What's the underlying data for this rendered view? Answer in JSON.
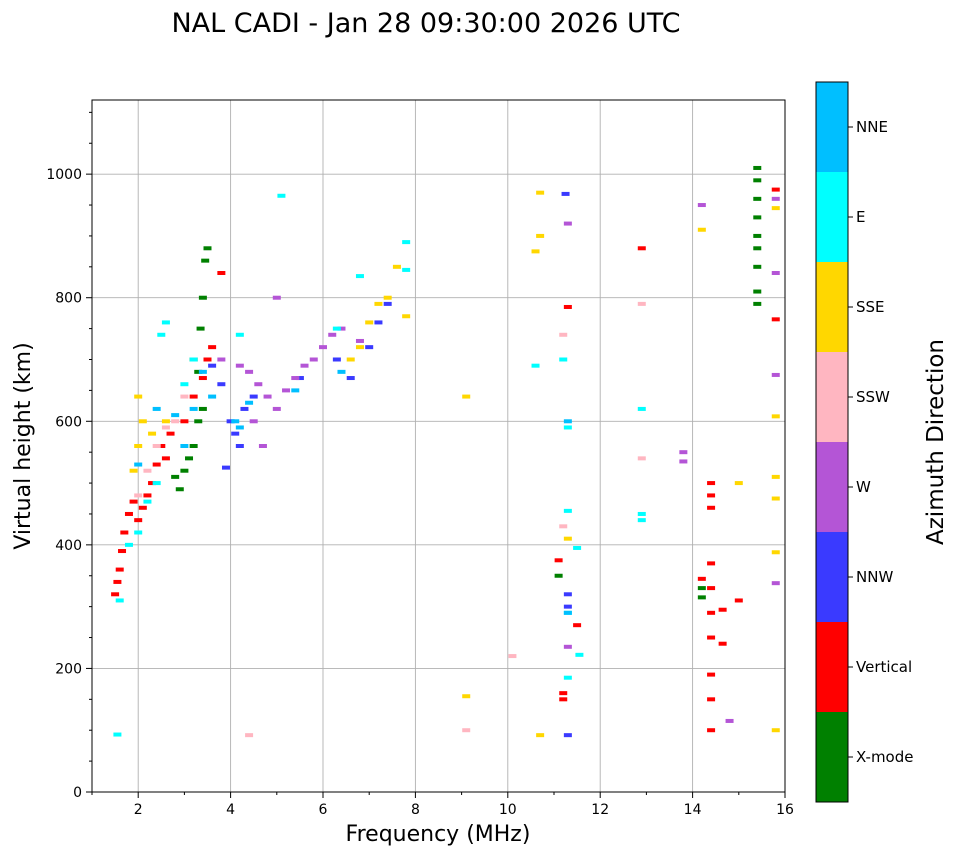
{
  "chart_data": {
    "type": "scatter",
    "title": "NAL CADI - Jan 28 09:30:00 2026 UTC",
    "xlabel": "Frequency (MHz)",
    "ylabel": "Virtual height (km)",
    "xlim": [
      1,
      16
    ],
    "ylim": [
      0,
      1120
    ],
    "xticks": [
      2,
      4,
      6,
      8,
      10,
      12,
      14,
      16
    ],
    "yticks": [
      0,
      200,
      400,
      600,
      800,
      1000
    ],
    "grid": true,
    "colorbar": {
      "label": "Azimuth Direction",
      "categories": [
        {
          "name": "X-mode",
          "color": "#008000"
        },
        {
          "name": "Vertical",
          "color": "#ff0000"
        },
        {
          "name": "NNW",
          "color": "#3a3aff"
        },
        {
          "name": "W",
          "color": "#b455d6"
        },
        {
          "name": "SSW",
          "color": "#ffb6c1"
        },
        {
          "name": "SSE",
          "color": "#ffd700"
        },
        {
          "name": "E",
          "color": "#00ffff"
        },
        {
          "name": "NNE",
          "color": "#00bfff"
        }
      ]
    },
    "series": [
      {
        "name": "Vertical",
        "points": [
          [
            1.5,
            320
          ],
          [
            1.55,
            340
          ],
          [
            1.6,
            360
          ],
          [
            1.65,
            390
          ],
          [
            1.7,
            420
          ],
          [
            1.8,
            450
          ],
          [
            1.9,
            470
          ],
          [
            2.0,
            440
          ],
          [
            2.1,
            460
          ],
          [
            2.2,
            480
          ],
          [
            2.3,
            500
          ],
          [
            2.4,
            530
          ],
          [
            2.5,
            560
          ],
          [
            2.6,
            540
          ],
          [
            2.7,
            580
          ],
          [
            3.0,
            600
          ],
          [
            3.2,
            640
          ],
          [
            3.4,
            670
          ],
          [
            3.5,
            700
          ],
          [
            3.6,
            720
          ],
          [
            3.8,
            840
          ],
          [
            11.1,
            375
          ],
          [
            11.2,
            160
          ],
          [
            11.2,
            150
          ],
          [
            11.5,
            270
          ],
          [
            12.9,
            880
          ],
          [
            11.3,
            785
          ],
          [
            14.4,
            500
          ],
          [
            14.4,
            480
          ],
          [
            14.4,
            460
          ],
          [
            14.4,
            370
          ],
          [
            14.4,
            330
          ],
          [
            14.4,
            290
          ],
          [
            14.4,
            250
          ],
          [
            14.4,
            190
          ],
          [
            14.4,
            150
          ],
          [
            14.4,
            100
          ],
          [
            14.65,
            295
          ],
          [
            14.65,
            240
          ],
          [
            14.2,
            345
          ],
          [
            15.0,
            310
          ],
          [
            15.8,
            975
          ],
          [
            15.8,
            765
          ]
        ]
      },
      {
        "name": "X-mode",
        "points": [
          [
            2.8,
            510
          ],
          [
            2.9,
            490
          ],
          [
            3.0,
            520
          ],
          [
            3.1,
            540
          ],
          [
            3.2,
            560
          ],
          [
            3.3,
            600
          ],
          [
            3.4,
            620
          ],
          [
            3.35,
            750
          ],
          [
            3.4,
            800
          ],
          [
            3.45,
            860
          ],
          [
            3.5,
            880
          ],
          [
            3.2,
            700
          ],
          [
            3.3,
            680
          ],
          [
            11.1,
            350
          ],
          [
            14.2,
            315
          ],
          [
            14.2,
            330
          ],
          [
            15.4,
            1010
          ],
          [
            15.4,
            990
          ],
          [
            15.4,
            960
          ],
          [
            15.4,
            930
          ],
          [
            15.4,
            900
          ],
          [
            15.4,
            880
          ],
          [
            15.4,
            850
          ],
          [
            15.4,
            810
          ],
          [
            15.4,
            790
          ]
        ]
      },
      {
        "name": "NNW",
        "points": [
          [
            3.6,
            690
          ],
          [
            3.8,
            660
          ],
          [
            4.0,
            600
          ],
          [
            4.1,
            580
          ],
          [
            4.2,
            560
          ],
          [
            4.3,
            620
          ],
          [
            4.5,
            640
          ],
          [
            3.9,
            525
          ],
          [
            5.5,
            670
          ],
          [
            6.3,
            700
          ],
          [
            6.6,
            670
          ],
          [
            7.0,
            720
          ],
          [
            7.2,
            760
          ],
          [
            7.4,
            790
          ],
          [
            11.3,
            320
          ],
          [
            11.3,
            300
          ],
          [
            11.25,
            968
          ],
          [
            11.3,
            92
          ]
        ]
      },
      {
        "name": "W",
        "points": [
          [
            3.8,
            700
          ],
          [
            4.2,
            690
          ],
          [
            4.4,
            680
          ],
          [
            4.6,
            660
          ],
          [
            4.8,
            640
          ],
          [
            5.0,
            620
          ],
          [
            5.2,
            650
          ],
          [
            5.4,
            670
          ],
          [
            5.6,
            690
          ],
          [
            5.8,
            700
          ],
          [
            6.0,
            720
          ],
          [
            6.2,
            740
          ],
          [
            6.4,
            750
          ],
          [
            6.8,
            730
          ],
          [
            4.5,
            600
          ],
          [
            4.7,
            560
          ],
          [
            5.0,
            800
          ],
          [
            11.3,
            920
          ],
          [
            11.3,
            235
          ],
          [
            13.8,
            550
          ],
          [
            13.8,
            535
          ],
          [
            14.2,
            950
          ],
          [
            14.8,
            115
          ],
          [
            15.8,
            960
          ],
          [
            15.8,
            840
          ],
          [
            15.8,
            675
          ],
          [
            15.8,
            338
          ]
        ]
      },
      {
        "name": "SSW",
        "points": [
          [
            2.0,
            480
          ],
          [
            2.2,
            520
          ],
          [
            2.4,
            560
          ],
          [
            2.6,
            590
          ],
          [
            2.8,
            600
          ],
          [
            3.0,
            640
          ],
          [
            4.4,
            92
          ],
          [
            10.1,
            220
          ],
          [
            9.1,
            100
          ],
          [
            11.2,
            740
          ],
          [
            11.2,
            430
          ],
          [
            12.9,
            790
          ],
          [
            12.9,
            540
          ]
        ]
      },
      {
        "name": "SSE",
        "points": [
          [
            1.9,
            520
          ],
          [
            2.0,
            560
          ],
          [
            2.1,
            600
          ],
          [
            2.0,
            640
          ],
          [
            2.3,
            580
          ],
          [
            2.6,
            600
          ],
          [
            6.6,
            700
          ],
          [
            6.8,
            720
          ],
          [
            7.0,
            760
          ],
          [
            7.2,
            790
          ],
          [
            7.4,
            800
          ],
          [
            7.6,
            850
          ],
          [
            7.8,
            770
          ],
          [
            9.1,
            640
          ],
          [
            9.1,
            155
          ],
          [
            10.6,
            875
          ],
          [
            10.7,
            900
          ],
          [
            10.7,
            970
          ],
          [
            10.7,
            92
          ],
          [
            11.3,
            410
          ],
          [
            14.2,
            910
          ],
          [
            15.0,
            500
          ],
          [
            15.8,
            945
          ],
          [
            15.8,
            608
          ],
          [
            15.8,
            510
          ],
          [
            15.8,
            475
          ],
          [
            15.8,
            388
          ],
          [
            15.8,
            100
          ]
        ]
      },
      {
        "name": "E",
        "points": [
          [
            1.55,
            93
          ],
          [
            1.6,
            310
          ],
          [
            1.8,
            400
          ],
          [
            2.0,
            420
          ],
          [
            2.2,
            470
          ],
          [
            2.4,
            500
          ],
          [
            2.5,
            740
          ],
          [
            2.6,
            760
          ],
          [
            3.0,
            660
          ],
          [
            3.2,
            700
          ],
          [
            4.2,
            740
          ],
          [
            5.1,
            965
          ],
          [
            6.3,
            750
          ],
          [
            6.8,
            835
          ],
          [
            7.8,
            890
          ],
          [
            7.8,
            845
          ],
          [
            10.6,
            690
          ],
          [
            11.2,
            700
          ],
          [
            11.3,
            590
          ],
          [
            11.3,
            455
          ],
          [
            11.3,
            290
          ],
          [
            11.3,
            185
          ],
          [
            11.5,
            395
          ],
          [
            11.55,
            222
          ],
          [
            12.9,
            620
          ],
          [
            12.9,
            450
          ],
          [
            12.9,
            440
          ]
        ]
      },
      {
        "name": "NNE",
        "points": [
          [
            2.0,
            530
          ],
          [
            2.4,
            620
          ],
          [
            2.8,
            610
          ],
          [
            3.0,
            560
          ],
          [
            3.2,
            620
          ],
          [
            3.4,
            680
          ],
          [
            3.6,
            640
          ],
          [
            4.1,
            600
          ],
          [
            4.2,
            590
          ],
          [
            4.4,
            630
          ],
          [
            5.4,
            650
          ],
          [
            6.4,
            680
          ],
          [
            11.3,
            600
          ],
          [
            11.3,
            290
          ]
        ]
      }
    ]
  }
}
